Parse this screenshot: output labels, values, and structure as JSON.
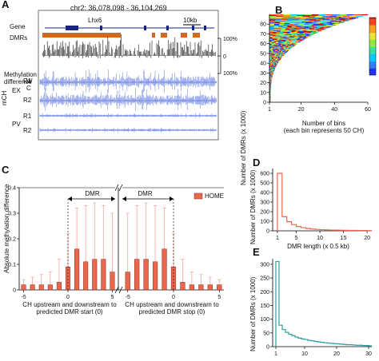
{
  "panelA": {
    "letter": "A",
    "coords": "chr2: 36,078,098 - 36,104,269",
    "gene_label": "Gene",
    "gene_name": "Lhx6",
    "scale_label": "10kb",
    "dmrs_label": "DMRs",
    "methdiff_label_1": "Methylation",
    "methdiff_label_2": "difference",
    "pct_top": "100%",
    "pct_zero": "0",
    "pct_bottom": "100%",
    "mch_label": "mCH",
    "ex_label": "EX",
    "pv_label": "PV",
    "r1": "R1",
    "r2": "R2",
    "w_label": "W",
    "c_label": "C",
    "colors": {
      "gene": "#1a237e",
      "dmr": "#d2691e",
      "track": "#3b5bdb"
    }
  },
  "panelB": {
    "letter": "B",
    "ylabel": "Number of DMRs (x 1000)",
    "xlabel_1": "Number of bins",
    "xlabel_2": "(each bin represents 50 CH)",
    "yticks": [
      "0",
      "10",
      "20",
      "30",
      "40",
      "50",
      "60",
      "70",
      "80"
    ],
    "xticks": [
      "1",
      "20",
      "40",
      "60"
    ]
  },
  "panelC": {
    "letter": "C",
    "ylabel": "Absolute methylation difference",
    "yticks": [
      "0",
      "0.1",
      "0.2",
      "0.3",
      "0.4"
    ],
    "dmr_left": "DMR",
    "dmr_right": "DMR",
    "legend": "HOME",
    "xticks_left": [
      "-5",
      "0",
      "5"
    ],
    "xticks_right": [
      "-5",
      "0",
      "5"
    ],
    "xlabel_left_1": "CH upstream and downstream to",
    "xlabel_left_2": "predicted DMR start (0)",
    "xlabel_right_1": "CH upstream and downstream to",
    "xlabel_right_2": "predicted DMR stop (0)",
    "color": "#e8674d"
  },
  "panelD": {
    "letter": "D",
    "ylabel": "Number of DMRs (x 1000)",
    "xlabel": "DMR length (x 0.5 kb)",
    "yticks": [
      "0",
      "100",
      "200",
      "300",
      "400",
      "500",
      "600"
    ],
    "xticks": [
      "1",
      "5",
      "10",
      "15",
      "20"
    ],
    "color": "#e8674d"
  },
  "panelE": {
    "letter": "E",
    "ylabel": "Number of DMRs (x 1000)",
    "yticks": [
      "0",
      "50",
      "100",
      "150",
      "200",
      "250",
      "300"
    ],
    "xticks": [
      "1",
      "10",
      "20",
      "30"
    ],
    "color": "#2a9d9f"
  },
  "chart_data": [
    {
      "type": "bar",
      "panel": "C-left",
      "x": [
        -5,
        -4,
        -3,
        -2,
        -1,
        0,
        1,
        2,
        3,
        4,
        5
      ],
      "values": [
        0.02,
        0.02,
        0.02,
        0.02,
        0.03,
        0.09,
        0.16,
        0.11,
        0.12,
        0.12,
        0.07
      ],
      "errors": [
        0.04,
        0.05,
        0.06,
        0.07,
        0.12,
        0.22,
        0.32,
        0.33,
        0.34,
        0.33,
        0.3
      ],
      "ylim": [
        0,
        0.4
      ]
    },
    {
      "type": "bar",
      "panel": "C-right",
      "x": [
        -5,
        -4,
        -3,
        -2,
        -1,
        0,
        1,
        2,
        3,
        4,
        5
      ],
      "values": [
        0.07,
        0.12,
        0.12,
        0.11,
        0.16,
        0.09,
        0.03,
        0.02,
        0.02,
        0.02,
        0.02
      ],
      "errors": [
        0.3,
        0.33,
        0.34,
        0.33,
        0.32,
        0.22,
        0.12,
        0.07,
        0.06,
        0.05,
        0.04
      ],
      "ylim": [
        0,
        0.4
      ]
    },
    {
      "type": "line",
      "panel": "D",
      "x": [
        1,
        2,
        3,
        4,
        5,
        6,
        7,
        8,
        9,
        10,
        11,
        12,
        13,
        14,
        15,
        16,
        17,
        18,
        19,
        20
      ],
      "values": [
        600,
        148,
        95,
        65,
        45,
        33,
        25,
        19,
        15,
        12,
        10,
        8,
        7,
        6,
        5,
        4,
        4,
        3,
        3,
        2
      ],
      "xlim": [
        0,
        21
      ],
      "ylim": [
        0,
        650
      ]
    },
    {
      "type": "line",
      "panel": "E",
      "x": [
        1,
        2,
        3,
        4,
        5,
        6,
        7,
        8,
        9,
        10,
        11,
        12,
        13,
        14,
        15,
        16,
        17,
        18,
        19,
        20,
        21,
        22,
        23,
        24,
        25,
        26,
        27,
        28,
        29,
        30
      ],
      "values": [
        310,
        78,
        62,
        52,
        45,
        40,
        35,
        31,
        28,
        26,
        23,
        21,
        19,
        17,
        16,
        14,
        13,
        12,
        11,
        10,
        9,
        8,
        7,
        7,
        6,
        5,
        5,
        4,
        4,
        3
      ],
      "xlim": [
        0,
        31
      ],
      "ylim": [
        0,
        320
      ]
    },
    {
      "type": "heatmap",
      "panel": "B",
      "x_bins": [
        1,
        60
      ],
      "ylim": [
        0,
        90
      ]
    }
  ]
}
